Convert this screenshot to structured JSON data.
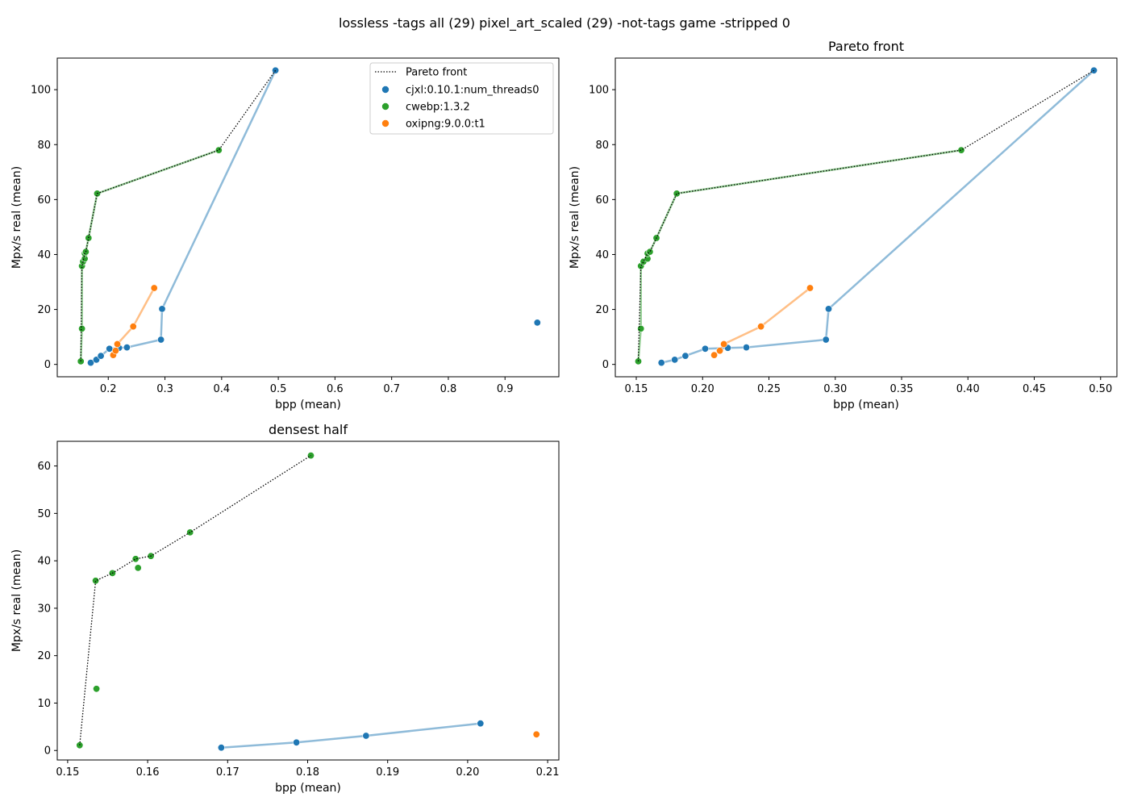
{
  "figure": {
    "suptitle": "lossless -tags all (29) pixel_art_scaled (29) -not-tags game -stripped 0"
  },
  "colors": {
    "cjxl": "#1f77b4",
    "cwebp": "#2ca02c",
    "oxipng": "#ff7f0e",
    "pareto": "#000000"
  },
  "legend": {
    "pareto": "Pareto front",
    "cjxl": "cjxl:0.10.1:num_threads0",
    "cwebp": "cwebp:1.3.2",
    "oxipng": "oxipng:9.0.0:t1"
  },
  "chart_data": [
    {
      "type": "scatter",
      "title": "",
      "xlabel": "bpp (mean)",
      "ylabel": "Mpx/s real (mean)",
      "xlim": [
        0.11,
        0.995
      ],
      "ylim": [
        -4.5,
        111.5
      ],
      "xticks": [
        0.2,
        0.3,
        0.4,
        0.5,
        0.6,
        0.7,
        0.8,
        0.9
      ],
      "xtick_labels": [
        "0.2",
        "0.3",
        "0.4",
        "0.5",
        "0.6",
        "0.7",
        "0.8",
        "0.9"
      ],
      "yticks": [
        0,
        20,
        40,
        60,
        80,
        100
      ],
      "ytick_labels": [
        "0",
        "20",
        "40",
        "60",
        "80",
        "100"
      ],
      "legend": "top-right",
      "grid": false,
      "series": [
        {
          "key": "cjxl",
          "line": [
            [
              0.169,
              0.6
            ],
            [
              0.179,
              1.7
            ],
            [
              0.187,
              3.1
            ],
            [
              0.202,
              5.7
            ],
            [
              0.219,
              6.0
            ],
            [
              0.233,
              6.2
            ],
            [
              0.293,
              9.0
            ],
            [
              0.295,
              20.2
            ],
            [
              0.495,
              107.0
            ]
          ],
          "points": [
            [
              0.169,
              0.6
            ],
            [
              0.179,
              1.7
            ],
            [
              0.187,
              3.1
            ],
            [
              0.202,
              5.7
            ],
            [
              0.219,
              6.0
            ],
            [
              0.233,
              6.2
            ],
            [
              0.293,
              9.0
            ],
            [
              0.295,
              20.2
            ],
            [
              0.495,
              107.0
            ],
            [
              0.957,
              15.2
            ]
          ]
        },
        {
          "key": "cwebp",
          "line": [
            [
              0.1515,
              1.1
            ],
            [
              0.1535,
              13.0
            ],
            [
              0.1535,
              35.8
            ],
            [
              0.1555,
              37.4
            ],
            [
              0.1585,
              38.5
            ],
            [
              0.1585,
              40.4
            ],
            [
              0.1603,
              41.0
            ],
            [
              0.1652,
              46.0
            ],
            [
              0.1805,
              62.2
            ],
            [
              0.395,
              78.0
            ]
          ],
          "points": [
            [
              0.1515,
              1.1
            ],
            [
              0.1535,
              13.0
            ],
            [
              0.1535,
              35.8
            ],
            [
              0.1555,
              37.4
            ],
            [
              0.1585,
              38.5
            ],
            [
              0.1585,
              40.4
            ],
            [
              0.1603,
              41.0
            ],
            [
              0.1652,
              46.0
            ],
            [
              0.1805,
              62.2
            ],
            [
              0.395,
              78.0
            ]
          ]
        },
        {
          "key": "oxipng",
          "line": [
            [
              0.2087,
              3.4
            ],
            [
              0.213,
              5.0
            ],
            [
              0.216,
              7.4
            ],
            [
              0.244,
              13.8
            ],
            [
              0.281,
              27.8
            ]
          ],
          "points": [
            [
              0.2087,
              3.4
            ],
            [
              0.213,
              5.0
            ],
            [
              0.216,
              7.4
            ],
            [
              0.244,
              13.8
            ],
            [
              0.281,
              27.8
            ]
          ]
        }
      ],
      "pareto": [
        [
          0.1515,
          1.1
        ],
        [
          0.1535,
          35.8
        ],
        [
          0.1555,
          37.4
        ],
        [
          0.1585,
          40.4
        ],
        [
          0.1603,
          41.0
        ],
        [
          0.1652,
          46.0
        ],
        [
          0.1805,
          62.2
        ],
        [
          0.395,
          78.0
        ],
        [
          0.495,
          107.0
        ]
      ]
    },
    {
      "type": "scatter",
      "title": "Pareto front",
      "xlabel": "bpp (mean)",
      "ylabel": "Mpx/s real (mean)",
      "xlim": [
        0.1342,
        0.5123
      ],
      "ylim": [
        -4.5,
        111.5
      ],
      "xticks": [
        0.15,
        0.2,
        0.25,
        0.3,
        0.35,
        0.4,
        0.45,
        0.5
      ],
      "xtick_labels": [
        "0.15",
        "0.20",
        "0.25",
        "0.30",
        "0.35",
        "0.40",
        "0.45",
        "0.50"
      ],
      "yticks": [
        0,
        20,
        40,
        60,
        80,
        100
      ],
      "ytick_labels": [
        "0",
        "20",
        "40",
        "60",
        "80",
        "100"
      ],
      "grid": false,
      "series": [
        {
          "key": "cjxl",
          "line": [
            [
              0.169,
              0.6
            ],
            [
              0.179,
              1.7
            ],
            [
              0.187,
              3.1
            ],
            [
              0.202,
              5.7
            ],
            [
              0.219,
              6.0
            ],
            [
              0.233,
              6.2
            ],
            [
              0.293,
              9.0
            ],
            [
              0.295,
              20.2
            ],
            [
              0.495,
              107.0
            ]
          ],
          "points": [
            [
              0.169,
              0.6
            ],
            [
              0.179,
              1.7
            ],
            [
              0.187,
              3.1
            ],
            [
              0.202,
              5.7
            ],
            [
              0.219,
              6.0
            ],
            [
              0.233,
              6.2
            ],
            [
              0.293,
              9.0
            ],
            [
              0.295,
              20.2
            ],
            [
              0.495,
              107.0
            ]
          ]
        },
        {
          "key": "cwebp",
          "line": [
            [
              0.1515,
              1.1
            ],
            [
              0.1535,
              13.0
            ],
            [
              0.1535,
              35.8
            ],
            [
              0.1555,
              37.4
            ],
            [
              0.1585,
              38.5
            ],
            [
              0.1585,
              40.4
            ],
            [
              0.1603,
              41.0
            ],
            [
              0.1652,
              46.0
            ],
            [
              0.1805,
              62.2
            ],
            [
              0.395,
              78.0
            ]
          ],
          "points": [
            [
              0.1515,
              1.1
            ],
            [
              0.1535,
              13.0
            ],
            [
              0.1535,
              35.8
            ],
            [
              0.1555,
              37.4
            ],
            [
              0.1585,
              38.5
            ],
            [
              0.1585,
              40.4
            ],
            [
              0.1603,
              41.0
            ],
            [
              0.1652,
              46.0
            ],
            [
              0.1805,
              62.2
            ],
            [
              0.395,
              78.0
            ]
          ]
        },
        {
          "key": "oxipng",
          "line": [
            [
              0.2087,
              3.4
            ],
            [
              0.213,
              5.0
            ],
            [
              0.216,
              7.4
            ],
            [
              0.244,
              13.8
            ],
            [
              0.281,
              27.8
            ]
          ],
          "points": [
            [
              0.2087,
              3.4
            ],
            [
              0.213,
              5.0
            ],
            [
              0.216,
              7.4
            ],
            [
              0.244,
              13.8
            ],
            [
              0.281,
              27.8
            ]
          ]
        }
      ],
      "pareto": [
        [
          0.1515,
          1.1
        ],
        [
          0.1535,
          35.8
        ],
        [
          0.1555,
          37.4
        ],
        [
          0.1585,
          40.4
        ],
        [
          0.1603,
          41.0
        ],
        [
          0.1652,
          46.0
        ],
        [
          0.1805,
          62.2
        ],
        [
          0.395,
          78.0
        ],
        [
          0.495,
          107.0
        ]
      ]
    },
    {
      "type": "scatter",
      "title": "densest half",
      "xlabel": "bpp (mean)",
      "ylabel": "Mpx/s real (mean)",
      "xlim": [
        0.1487,
        0.2114
      ],
      "ylim": [
        -2.0,
        65.2
      ],
      "xticks": [
        0.15,
        0.16,
        0.17,
        0.18,
        0.19,
        0.2,
        0.21
      ],
      "xtick_labels": [
        "0.15",
        "0.16",
        "0.17",
        "0.18",
        "0.19",
        "0.20",
        "0.21"
      ],
      "yticks": [
        0,
        10,
        20,
        30,
        40,
        50,
        60
      ],
      "ytick_labels": [
        "0",
        "10",
        "20",
        "30",
        "40",
        "50",
        "60"
      ],
      "grid": false,
      "series": [
        {
          "key": "cjxl",
          "line": [
            [
              0.1692,
              0.6
            ],
            [
              0.1786,
              1.7
            ],
            [
              0.1873,
              3.1
            ],
            [
              0.2016,
              5.7
            ]
          ],
          "points": [
            [
              0.1692,
              0.6
            ],
            [
              0.1786,
              1.7
            ],
            [
              0.1873,
              3.1
            ],
            [
              0.2016,
              5.7
            ]
          ]
        },
        {
          "key": "cwebp",
          "line": [],
          "points": [
            [
              0.1515,
              1.1
            ],
            [
              0.1536,
              13.0
            ],
            [
              0.1535,
              35.8
            ],
            [
              0.1556,
              37.4
            ],
            [
              0.1588,
              38.5
            ],
            [
              0.1585,
              40.4
            ],
            [
              0.1604,
              41.0
            ],
            [
              0.1653,
              46.0
            ],
            [
              0.1804,
              62.2
            ]
          ]
        },
        {
          "key": "oxipng",
          "line": [],
          "points": [
            [
              0.2086,
              3.4
            ]
          ]
        }
      ],
      "pareto": [
        [
          0.1515,
          1.1
        ],
        [
          0.1535,
          35.8
        ],
        [
          0.1556,
          37.4
        ],
        [
          0.1585,
          40.4
        ],
        [
          0.1604,
          41.0
        ],
        [
          0.1653,
          46.0
        ],
        [
          0.1804,
          62.2
        ]
      ]
    }
  ]
}
